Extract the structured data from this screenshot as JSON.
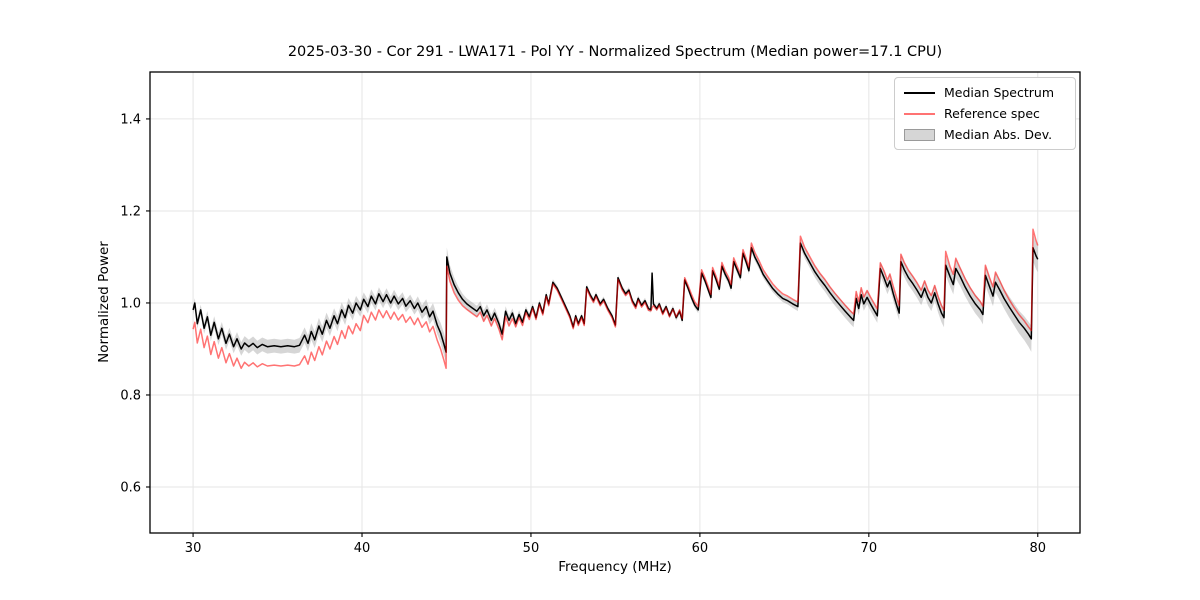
{
  "figure": {
    "title": "2025-03-30 - Cor 291 - LWA171 - Pol YY - Normalized Spectrum (Median power=17.1 CPU)"
  },
  "legend": {
    "entries": [
      {
        "label": "Median Spectrum",
        "type": "line",
        "color": "#000000",
        "opacity": 1
      },
      {
        "label": "Reference spec",
        "type": "line",
        "color": "#ff0000",
        "opacity": 0.55
      },
      {
        "label": "Median Abs. Dev.",
        "type": "patch",
        "color": "#808080",
        "opacity": 0.32,
        "edge": "#9a9a9a"
      }
    ]
  },
  "chart_data": {
    "type": "line",
    "title": "2025-03-30 - Cor 291 - LWA171 - Pol YY - Normalized Spectrum (Median power=17.1 CPU)",
    "xlabel": "Frequency (MHz)",
    "ylabel": "Normalized Power",
    "xlim": [
      27.45,
      82.5
    ],
    "ylim": [
      0.5,
      1.502
    ],
    "xticks": [
      30,
      40,
      50,
      60,
      70,
      80
    ],
    "xtick_labels": [
      "30",
      "40",
      "50",
      "60",
      "70",
      "80"
    ],
    "yticks": [
      0.6,
      0.8,
      1.0,
      1.2,
      1.4
    ],
    "ytick_labels": [
      "0.6",
      "0.8",
      "1.0",
      "1.2",
      "1.4"
    ],
    "grid": true,
    "legend_position": "upper right",
    "series_names": [
      "freq_mhz",
      "median_spectrum",
      "reference_spec"
    ],
    "colors": {
      "median_spectrum": "#000000",
      "reference_spec": "#ff0000",
      "reference_opacity": 0.55,
      "mad_band": "#808080",
      "mad_band_opacity": 0.32,
      "grid": "#e6e6e6",
      "spine": "#000000"
    },
    "points": [
      [
        30.0,
        0.985,
        0.943
      ],
      [
        30.1,
        1.0,
        0.958
      ],
      [
        30.25,
        0.955,
        0.913
      ],
      [
        30.45,
        0.985,
        0.943
      ],
      [
        30.65,
        0.945,
        0.903
      ],
      [
        30.85,
        0.97,
        0.928
      ],
      [
        31.05,
        0.93,
        0.888
      ],
      [
        31.25,
        0.958,
        0.916
      ],
      [
        31.5,
        0.922,
        0.88
      ],
      [
        31.7,
        0.945,
        0.903
      ],
      [
        31.95,
        0.912,
        0.87
      ],
      [
        32.15,
        0.932,
        0.89
      ],
      [
        32.4,
        0.905,
        0.863
      ],
      [
        32.6,
        0.922,
        0.88
      ],
      [
        32.85,
        0.9,
        0.858
      ],
      [
        33.05,
        0.913,
        0.871
      ],
      [
        33.3,
        0.905,
        0.863
      ],
      [
        33.55,
        0.912,
        0.87
      ],
      [
        33.8,
        0.903,
        0.861
      ],
      [
        34.1,
        0.91,
        0.868
      ],
      [
        34.4,
        0.905,
        0.863
      ],
      [
        34.8,
        0.907,
        0.865
      ],
      [
        35.2,
        0.905,
        0.863
      ],
      [
        35.6,
        0.907,
        0.865
      ],
      [
        36.0,
        0.905,
        0.863
      ],
      [
        36.3,
        0.908,
        0.866
      ],
      [
        36.6,
        0.93,
        0.885
      ],
      [
        36.8,
        0.912,
        0.867
      ],
      [
        37.0,
        0.938,
        0.893
      ],
      [
        37.2,
        0.92,
        0.875
      ],
      [
        37.45,
        0.95,
        0.905
      ],
      [
        37.65,
        0.932,
        0.887
      ],
      [
        37.9,
        0.962,
        0.917
      ],
      [
        38.1,
        0.945,
        0.9
      ],
      [
        38.35,
        0.972,
        0.927
      ],
      [
        38.55,
        0.955,
        0.91
      ],
      [
        38.8,
        0.985,
        0.94
      ],
      [
        39.0,
        0.968,
        0.923
      ],
      [
        39.2,
        0.995,
        0.95
      ],
      [
        39.45,
        0.978,
        0.933
      ],
      [
        39.65,
        1.0,
        0.955
      ],
      [
        39.9,
        0.985,
        0.94
      ],
      [
        40.1,
        1.008,
        0.973
      ],
      [
        40.35,
        0.992,
        0.957
      ],
      [
        40.55,
        1.015,
        0.98
      ],
      [
        40.8,
        0.998,
        0.963
      ],
      [
        41.0,
        1.02,
        0.985
      ],
      [
        41.25,
        1.003,
        0.968
      ],
      [
        41.45,
        1.018,
        0.983
      ],
      [
        41.7,
        1.0,
        0.965
      ],
      [
        41.9,
        1.015,
        0.98
      ],
      [
        42.15,
        0.998,
        0.963
      ],
      [
        42.4,
        1.01,
        0.975
      ],
      [
        42.6,
        0.993,
        0.958
      ],
      [
        42.85,
        1.005,
        0.97
      ],
      [
        43.1,
        0.988,
        0.953
      ],
      [
        43.3,
        1.0,
        0.967
      ],
      [
        43.55,
        0.98,
        0.947
      ],
      [
        43.8,
        0.992,
        0.959
      ],
      [
        44.0,
        0.97,
        0.937
      ],
      [
        44.2,
        0.982,
        0.949
      ],
      [
        44.45,
        0.952,
        0.919
      ],
      [
        44.65,
        0.935,
        0.9
      ],
      [
        44.85,
        0.91,
        0.875
      ],
      [
        44.98,
        0.893,
        0.858
      ],
      [
        45.02,
        1.1,
        1.08
      ],
      [
        45.2,
        1.065,
        1.047
      ],
      [
        45.45,
        1.04,
        1.022
      ],
      [
        45.7,
        1.022,
        1.006
      ],
      [
        45.95,
        1.008,
        0.994
      ],
      [
        46.2,
        0.998,
        0.986
      ],
      [
        46.5,
        0.99,
        0.978
      ],
      [
        46.8,
        0.982,
        0.97
      ],
      [
        47.0,
        0.992,
        0.98
      ],
      [
        47.2,
        0.972,
        0.96
      ],
      [
        47.4,
        0.985,
        0.973
      ],
      [
        47.65,
        0.962,
        0.95
      ],
      [
        47.85,
        0.978,
        0.966
      ],
      [
        48.1,
        0.955,
        0.943
      ],
      [
        48.3,
        0.932,
        0.92
      ],
      [
        48.5,
        0.982,
        0.97
      ],
      [
        48.7,
        0.962,
        0.95
      ],
      [
        48.9,
        0.978,
        0.966
      ],
      [
        49.1,
        0.955,
        0.948
      ],
      [
        49.3,
        0.975,
        0.968
      ],
      [
        49.5,
        0.958,
        0.951
      ],
      [
        49.7,
        0.985,
        0.979
      ],
      [
        49.9,
        0.97,
        0.964
      ],
      [
        50.1,
        0.992,
        0.988
      ],
      [
        50.3,
        0.968,
        0.964
      ],
      [
        50.5,
        1.0,
        0.996
      ],
      [
        50.7,
        0.978,
        0.974
      ],
      [
        50.9,
        1.018,
        1.014
      ],
      [
        51.05,
        0.998,
        0.994
      ],
      [
        51.3,
        1.045,
        1.041
      ],
      [
        51.55,
        1.032,
        1.028
      ],
      [
        51.8,
        1.012,
        1.008
      ],
      [
        52.05,
        0.992,
        0.988
      ],
      [
        52.3,
        0.972,
        0.968
      ],
      [
        52.5,
        0.948,
        0.944
      ],
      [
        52.65,
        0.972,
        0.968
      ],
      [
        52.8,
        0.955,
        0.951
      ],
      [
        53.0,
        0.972,
        0.968
      ],
      [
        53.15,
        0.955,
        0.951
      ],
      [
        53.3,
        1.035,
        1.031
      ],
      [
        53.5,
        1.018,
        1.014
      ],
      [
        53.7,
        1.005,
        1.001
      ],
      [
        53.85,
        1.018,
        1.014
      ],
      [
        54.1,
        0.998,
        0.994
      ],
      [
        54.3,
        1.008,
        1.004
      ],
      [
        54.55,
        0.988,
        0.984
      ],
      [
        54.8,
        0.972,
        0.968
      ],
      [
        55.0,
        0.952,
        0.948
      ],
      [
        55.15,
        1.055,
        1.051
      ],
      [
        55.4,
        1.032,
        1.028
      ],
      [
        55.6,
        1.02,
        1.016
      ],
      [
        55.8,
        1.028,
        1.024
      ],
      [
        56.0,
        1.005,
        1.001
      ],
      [
        56.2,
        0.992,
        0.988
      ],
      [
        56.35,
        1.01,
        1.006
      ],
      [
        56.55,
        0.995,
        0.991
      ],
      [
        56.75,
        1.005,
        1.001
      ],
      [
        56.95,
        0.988,
        0.984
      ],
      [
        57.1,
        0.985,
        0.983
      ],
      [
        57.17,
        1.065,
        0.99
      ],
      [
        57.25,
        0.998,
        0.994
      ],
      [
        57.45,
        0.988,
        0.985
      ],
      [
        57.6,
        0.998,
        0.995
      ],
      [
        57.8,
        0.978,
        0.975
      ],
      [
        58.0,
        0.992,
        0.989
      ],
      [
        58.2,
        0.972,
        0.97
      ],
      [
        58.4,
        0.988,
        0.986
      ],
      [
        58.6,
        0.968,
        0.97
      ],
      [
        58.8,
        0.982,
        0.985
      ],
      [
        58.95,
        0.962,
        0.966
      ],
      [
        59.1,
        1.05,
        1.055
      ],
      [
        59.3,
        1.032,
        1.038
      ],
      [
        59.5,
        1.012,
        1.019
      ],
      [
        59.7,
        0.995,
        1.002
      ],
      [
        59.9,
        0.985,
        0.992
      ],
      [
        60.1,
        1.065,
        1.072
      ],
      [
        60.3,
        1.048,
        1.055
      ],
      [
        60.5,
        1.028,
        1.035
      ],
      [
        60.65,
        1.012,
        1.019
      ],
      [
        60.75,
        1.07,
        1.077
      ],
      [
        60.95,
        1.052,
        1.059
      ],
      [
        61.15,
        1.03,
        1.037
      ],
      [
        61.3,
        1.08,
        1.088
      ],
      [
        61.5,
        1.062,
        1.07
      ],
      [
        61.7,
        1.048,
        1.056
      ],
      [
        61.85,
        1.032,
        1.04
      ],
      [
        62.0,
        1.09,
        1.098
      ],
      [
        62.2,
        1.072,
        1.08
      ],
      [
        62.4,
        1.055,
        1.063
      ],
      [
        62.55,
        1.108,
        1.116
      ],
      [
        62.75,
        1.088,
        1.096
      ],
      [
        62.9,
        1.07,
        1.078
      ],
      [
        63.05,
        1.12,
        1.13
      ],
      [
        63.25,
        1.1,
        1.11
      ],
      [
        63.5,
        1.082,
        1.092
      ],
      [
        63.75,
        1.062,
        1.072
      ],
      [
        64.0,
        1.048,
        1.058
      ],
      [
        64.3,
        1.032,
        1.042
      ],
      [
        64.6,
        1.02,
        1.03
      ],
      [
        64.9,
        1.01,
        1.02
      ],
      [
        65.2,
        1.005,
        1.015
      ],
      [
        65.5,
        0.998,
        1.008
      ],
      [
        65.8,
        0.992,
        1.002
      ],
      [
        65.95,
        1.13,
        1.145
      ],
      [
        66.2,
        1.108,
        1.121
      ],
      [
        66.5,
        1.088,
        1.101
      ],
      [
        66.8,
        1.068,
        1.081
      ],
      [
        67.1,
        1.052,
        1.065
      ],
      [
        67.4,
        1.038,
        1.051
      ],
      [
        67.7,
        1.022,
        1.035
      ],
      [
        68.0,
        1.008,
        1.021
      ],
      [
        68.3,
        0.995,
        1.008
      ],
      [
        68.6,
        0.982,
        0.995
      ],
      [
        68.9,
        0.97,
        0.983
      ],
      [
        69.1,
        0.962,
        0.976
      ],
      [
        69.25,
        1.01,
        1.025
      ],
      [
        69.4,
        0.988,
        1.003
      ],
      [
        69.55,
        1.018,
        1.033
      ],
      [
        69.7,
        0.998,
        1.013
      ],
      [
        69.9,
        1.012,
        1.027
      ],
      [
        70.1,
        0.998,
        1.013
      ],
      [
        70.3,
        0.985,
        1.0
      ],
      [
        70.5,
        0.972,
        0.987
      ],
      [
        70.68,
        1.075,
        1.087
      ],
      [
        70.9,
        1.055,
        1.07
      ],
      [
        71.1,
        1.035,
        1.05
      ],
      [
        71.25,
        1.048,
        1.063
      ],
      [
        71.45,
        1.02,
        1.036
      ],
      [
        71.65,
        0.995,
        1.011
      ],
      [
        71.8,
        0.978,
        0.994
      ],
      [
        71.9,
        1.09,
        1.106
      ],
      [
        72.1,
        1.072,
        1.088
      ],
      [
        72.35,
        1.055,
        1.071
      ],
      [
        72.6,
        1.042,
        1.058
      ],
      [
        72.85,
        1.028,
        1.044
      ],
      [
        73.1,
        1.012,
        1.028
      ],
      [
        73.3,
        1.032,
        1.048
      ],
      [
        73.5,
        1.012,
        1.028
      ],
      [
        73.7,
        1.0,
        1.016
      ],
      [
        73.9,
        1.022,
        1.038
      ],
      [
        74.1,
        0.998,
        1.014
      ],
      [
        74.3,
        0.978,
        0.994
      ],
      [
        74.45,
        0.968,
        0.984
      ],
      [
        74.55,
        1.082,
        1.112
      ],
      [
        74.8,
        1.058,
        1.08
      ],
      [
        75.0,
        1.04,
        1.062
      ],
      [
        75.15,
        1.075,
        1.097
      ],
      [
        75.4,
        1.058,
        1.076
      ],
      [
        75.7,
        1.035,
        1.053
      ],
      [
        76.0,
        1.015,
        1.033
      ],
      [
        76.3,
        0.998,
        1.016
      ],
      [
        76.6,
        0.985,
        1.003
      ],
      [
        76.75,
        0.975,
        0.993
      ],
      [
        76.9,
        1.06,
        1.082
      ],
      [
        77.15,
        1.035,
        1.055
      ],
      [
        77.35,
        1.015,
        1.035
      ],
      [
        77.5,
        1.045,
        1.067
      ],
      [
        77.75,
        1.028,
        1.048
      ],
      [
        78.0,
        1.01,
        1.028
      ],
      [
        78.3,
        0.992,
        1.008
      ],
      [
        78.6,
        0.975,
        0.99
      ],
      [
        78.9,
        0.958,
        0.974
      ],
      [
        79.2,
        0.945,
        0.961
      ],
      [
        79.45,
        0.932,
        0.948
      ],
      [
        79.62,
        0.922,
        0.94
      ],
      [
        79.72,
        1.12,
        1.16
      ],
      [
        79.9,
        1.102,
        1.135
      ],
      [
        80.0,
        1.095,
        1.125
      ]
    ],
    "mad_halfwidth": [
      [
        30,
        0.01
      ],
      [
        31,
        0.013
      ],
      [
        33,
        0.015
      ],
      [
        36,
        0.015
      ],
      [
        37,
        0.018
      ],
      [
        40,
        0.015
      ],
      [
        43,
        0.013
      ],
      [
        44.3,
        0.018
      ],
      [
        44.9,
        0.025
      ],
      [
        45.1,
        0.018
      ],
      [
        46,
        0.012
      ],
      [
        48,
        0.012
      ],
      [
        49,
        0.01
      ],
      [
        50,
        0.007
      ],
      [
        53,
        0.006
      ],
      [
        56,
        0.006
      ],
      [
        58,
        0.006
      ],
      [
        60,
        0.007
      ],
      [
        63,
        0.008
      ],
      [
        65,
        0.008
      ],
      [
        66,
        0.01
      ],
      [
        67,
        0.013
      ],
      [
        69,
        0.015
      ],
      [
        70,
        0.015
      ],
      [
        71.5,
        0.016
      ],
      [
        72,
        0.016
      ],
      [
        74,
        0.018
      ],
      [
        74.6,
        0.022
      ],
      [
        76,
        0.02
      ],
      [
        77,
        0.022
      ],
      [
        78,
        0.022
      ],
      [
        79,
        0.025
      ],
      [
        79.6,
        0.028
      ],
      [
        79.75,
        0.03
      ],
      [
        80,
        0.028
      ]
    ]
  }
}
